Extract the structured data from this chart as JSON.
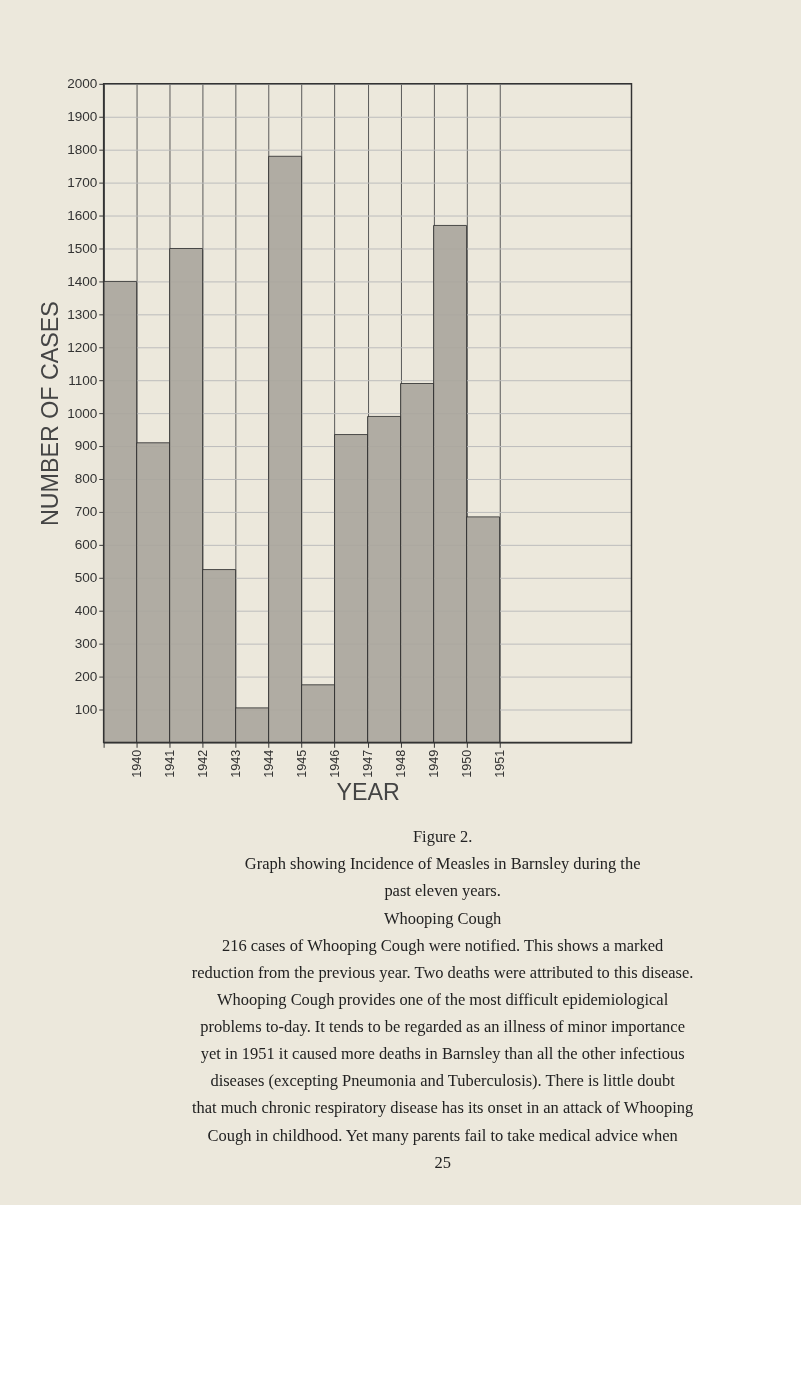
{
  "chart_data": {
    "type": "histogram",
    "xlabel": "YEAR",
    "ylabel": "NUMBER OF CASES",
    "bins": [
      1939,
      1940,
      1941,
      1942,
      1943,
      1944,
      1945,
      1946,
      1947,
      1948,
      1949,
      1950,
      1951
    ],
    "values": [
      1400,
      910,
      1500,
      525,
      105,
      1780,
      175,
      935,
      990,
      1090,
      1570,
      685
    ],
    "color": "#aaa69d",
    "xlim": [
      1939,
      1955
    ],
    "xticks": [
      {
        "value": 1939,
        "label": null
      },
      1940,
      1941,
      1942,
      1943,
      1944,
      1945,
      1946,
      1947,
      1948,
      1949,
      1950,
      1951
    ],
    "ylim": [
      0,
      2000
    ],
    "yticks": [
      100,
      200,
      300,
      400,
      500,
      600,
      700,
      800,
      900,
      1000,
      1100,
      1200,
      1300,
      1400,
      1500,
      1600,
      1700,
      1800,
      1900,
      2000
    ],
    "grid": true,
    "annotations": [
      "Figure 2.",
      "Graph showing Incidence of Measles in Barnsley during the",
      "past eleven years.",
      "Whooping Cough",
      "216 cases of Whooping Cough were notified. This shows a marked",
      "reduction from the previous year. Two deaths were attributed to this disease.",
      "Whooping Cough provides one of the most difficult epidemiological",
      "problems to-day. It tends to be regarded as an illness of minor importance",
      "yet in 1951 it caused more deaths in Barnsley than all the other infectious",
      "diseases (excepting Pneumonia and Tuberculosis). There is little doubt",
      "that much chronic respiratory disease has its onset in an attack of Whooping",
      "Cough in childhood. Yet many parents fail to take medical advice when",
      "25"
    ]
  }
}
